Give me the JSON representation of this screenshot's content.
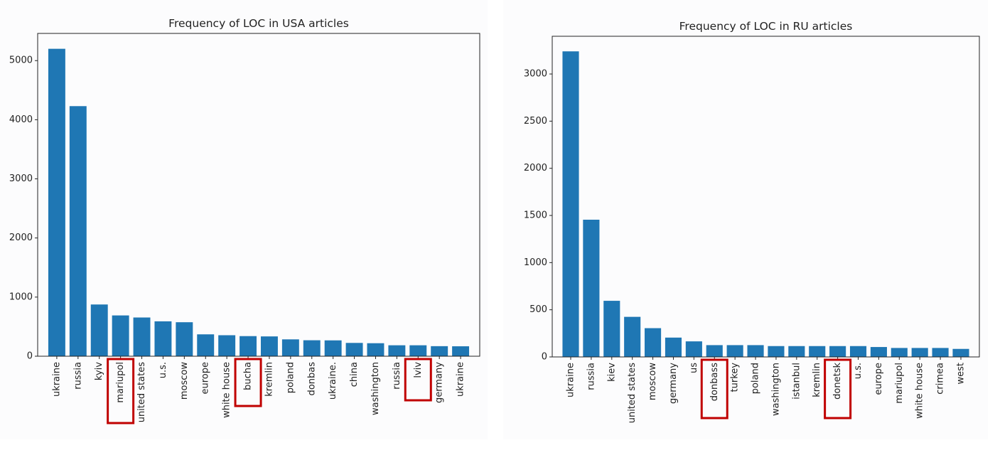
{
  "chart_data": [
    {
      "type": "bar",
      "title": "Frequency of LOC in USA articles",
      "xlabel": "",
      "ylabel": "",
      "categories": [
        "ukraine",
        "russia",
        "kyiv",
        "mariupol",
        "united states",
        "u.s.",
        "moscow",
        "europe",
        "white house",
        "bucha",
        "kremlin",
        "poland",
        "donbas",
        "ukraine.",
        "china",
        "washington",
        "russia",
        "lviv",
        "germany",
        "ukraine"
      ],
      "values": [
        5200,
        4230,
        875,
        690,
        655,
        590,
        575,
        370,
        355,
        340,
        335,
        285,
        270,
        268,
        225,
        220,
        185,
        185,
        170,
        168
      ],
      "ylim": [
        0,
        5460
      ],
      "yticks": [
        0,
        1000,
        2000,
        3000,
        4000,
        5000
      ],
      "highlighted": [
        "mariupol",
        "bucha",
        "lviv"
      ],
      "grid": false,
      "bar_color": "#1f77b4",
      "highlight_color": "#c00000"
    },
    {
      "type": "bar",
      "title": "Frequency of LOC in RU articles",
      "xlabel": "",
      "ylabel": "",
      "categories": [
        "ukraine",
        "russia",
        "kiev",
        "united states",
        "moscow",
        "germany",
        "us",
        "donbass",
        "turkey",
        "poland",
        "washington",
        "istanbul",
        "kremlin",
        "donetsk",
        "u.s.",
        "europe",
        "mariupol",
        "white house",
        "crimea",
        "west"
      ],
      "values": [
        3240,
        1455,
        595,
        425,
        305,
        205,
        165,
        125,
        125,
        125,
        115,
        115,
        115,
        115,
        115,
        105,
        95,
        95,
        95,
        85
      ],
      "ylim": [
        0,
        3400
      ],
      "yticks": [
        0,
        500,
        1000,
        1500,
        2000,
        2500,
        3000
      ],
      "highlighted": [
        "donbass",
        "donetsk"
      ],
      "grid": false,
      "bar_color": "#1f77b4",
      "highlight_color": "#c00000"
    }
  ]
}
